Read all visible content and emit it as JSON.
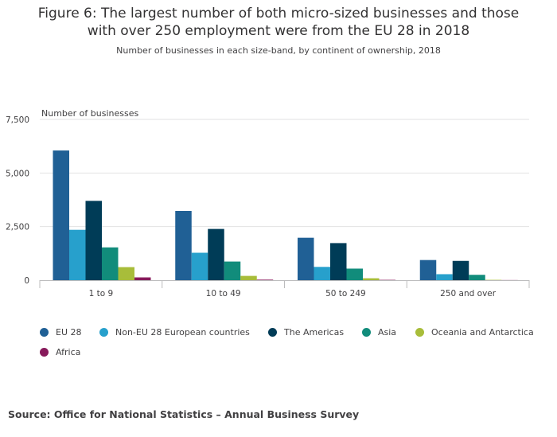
{
  "title_line1": "Figure 6: The largest number of both micro-sized businesses and those",
  "title_line2": "with over 250 employment were from the EU 28 in 2018",
  "subtitle": "Number of businesses in each size-band, by continent of ownership, 2018",
  "source": "Source: Office for National Statistics – Annual Business Survey",
  "chart_data": {
    "type": "bar",
    "ylabel": "Number of businesses",
    "xlabel": "",
    "ylim": [
      0,
      7500
    ],
    "yticks": [
      0,
      2500,
      5000,
      7500
    ],
    "ytick_labels": [
      "0",
      "2,500",
      "5,000",
      "7,500"
    ],
    "grid": true,
    "legend_position": "bottom",
    "categories": [
      "1 to 9",
      "10 to 49",
      "50 to 249",
      "250 and over"
    ],
    "series": [
      {
        "name": "EU 28",
        "color": "#206095",
        "values": [
          6050,
          3230,
          1980,
          940
        ]
      },
      {
        "name": "Non-EU 28 European countries",
        "color": "#27a0cc",
        "values": [
          2350,
          1280,
          620,
          280
        ]
      },
      {
        "name": "The Americas",
        "color": "#003c57",
        "values": [
          3700,
          2390,
          1730,
          900
        ]
      },
      {
        "name": "Asia",
        "color": "#118c7b",
        "values": [
          1530,
          870,
          540,
          250
        ]
      },
      {
        "name": "Oceania and Antarctica",
        "color": "#a8bd3a",
        "values": [
          610,
          200,
          90,
          15
        ]
      },
      {
        "name": "Africa",
        "color": "#871a5b",
        "values": [
          130,
          25,
          15,
          5
        ]
      }
    ]
  }
}
